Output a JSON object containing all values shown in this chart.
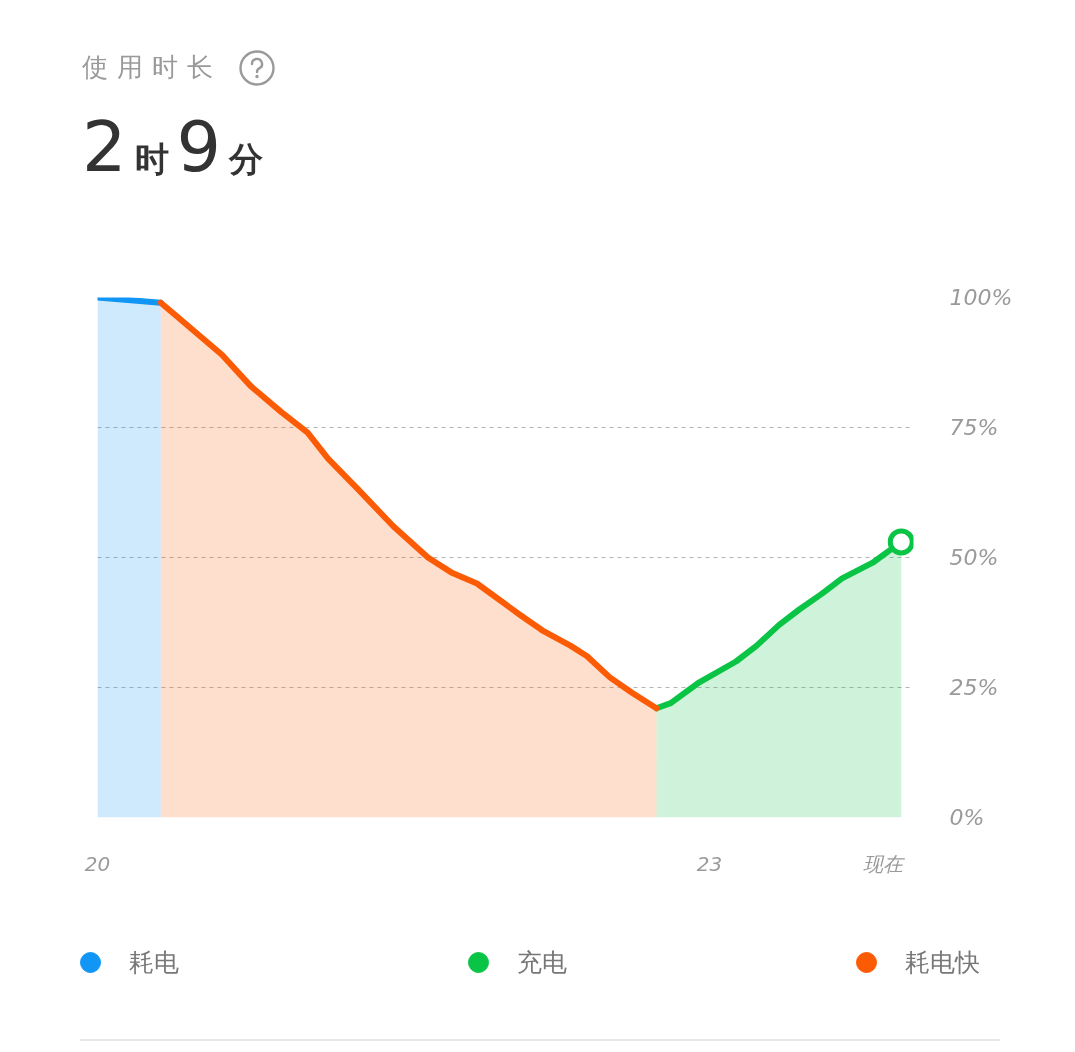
{
  "chart_data": {
    "type": "area",
    "title": "使用时长",
    "subtitle": "2时9分",
    "xlim": [
      20,
      24
    ],
    "xticks": [
      20,
      23,
      {
        "value": 23.85,
        "label": "现在"
      }
    ],
    "ylim": [
      0,
      100
    ],
    "yticks": [
      {
        "value": 0,
        "label": "0%"
      },
      {
        "value": 25,
        "label": "25%"
      },
      {
        "value": 50,
        "label": "50%"
      },
      {
        "value": 75,
        "label": "75%"
      },
      {
        "value": 100,
        "label": "100%"
      }
    ],
    "grid": "y",
    "legend": "bottom",
    "series": [
      {
        "name": "耗电",
        "color": "#1296f5",
        "x": [
          20.0,
          20.31
        ],
        "values": [
          100,
          99
        ]
      },
      {
        "name": "充电",
        "color": "#0ac445",
        "x": [
          22.74,
          22.81,
          22.95,
          23.13,
          23.23,
          23.34,
          23.44,
          23.55,
          23.65,
          23.8,
          23.94
        ],
        "values": [
          21,
          22,
          26,
          30,
          33,
          37,
          40,
          43,
          46,
          49,
          53
        ]
      },
      {
        "name": "耗电快",
        "color": "#fc5b05",
        "x": [
          20.31,
          20.4,
          20.61,
          20.75,
          20.9,
          21.03,
          21.13,
          21.28,
          21.45,
          21.62,
          21.74,
          21.86,
          22.07,
          22.18,
          22.32,
          22.4,
          22.51,
          22.62,
          22.74
        ],
        "values": [
          99,
          96,
          89,
          83,
          78,
          74,
          69,
          63,
          56,
          50,
          47,
          45,
          39,
          36,
          33,
          31,
          27,
          24,
          21
        ]
      },
      {
        "type": "scatter",
        "color": "#0ac445",
        "x": [
          23.94
        ],
        "values": [
          53
        ],
        "marker": "circle"
      }
    ]
  }
}
